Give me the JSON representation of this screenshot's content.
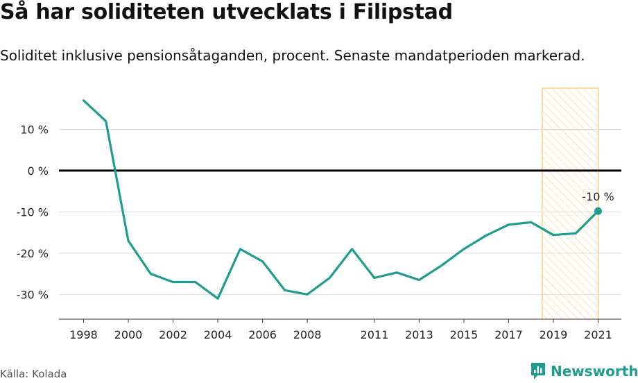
{
  "title": "Så har soliditeten utvecklats i Filipstad",
  "subtitle": "Soliditet inklusive pensionsåtaganden, procent. Senaste mandatperioden markerad.",
  "source": "Källa: Kolada",
  "brand": "Newsworthy",
  "colors": {
    "line": "#1e9c8e",
    "highlight": "#f5c04a",
    "zero": "#000000",
    "grid": "#dddddd"
  },
  "chart_data": {
    "type": "line",
    "x": [
      1998,
      1999,
      2000,
      2001,
      2002,
      2003,
      2004,
      2005,
      2006,
      2007,
      2008,
      2009,
      2010,
      2011,
      2012,
      2013,
      2014,
      2015,
      2016,
      2017,
      2018,
      2019,
      2020,
      2021
    ],
    "values": [
      17,
      12,
      -17,
      -25,
      -27,
      -27,
      -31,
      -19,
      -22,
      -29,
      -30,
      -26,
      -19,
      -26,
      -24.7,
      -26.5,
      -23,
      -19,
      -15.7,
      -13.1,
      -12.5,
      -15.6,
      -15.2,
      -9.8
    ],
    "xticks": [
      1998,
      2000,
      2002,
      2004,
      2006,
      2008,
      2011,
      2013,
      2015,
      2017,
      2019,
      2021
    ],
    "xtick_labels": [
      "1998",
      "2000",
      "2002",
      "2004",
      "2006",
      "2008",
      "2011",
      "2013",
      "2015",
      "2017",
      "2019",
      "2021"
    ],
    "yticks": [
      10,
      0,
      -10,
      -20,
      -30
    ],
    "ytick_labels": [
      "10 %",
      "0 %",
      "-10 %",
      "-20 %",
      "-30 %"
    ],
    "ylim": [
      -36,
      20
    ],
    "xlim": [
      1996.9,
      2022.1
    ],
    "highlight_range": [
      2018.5,
      2021
    ],
    "end_label": "-10 %",
    "xlabel": "",
    "ylabel": ""
  }
}
